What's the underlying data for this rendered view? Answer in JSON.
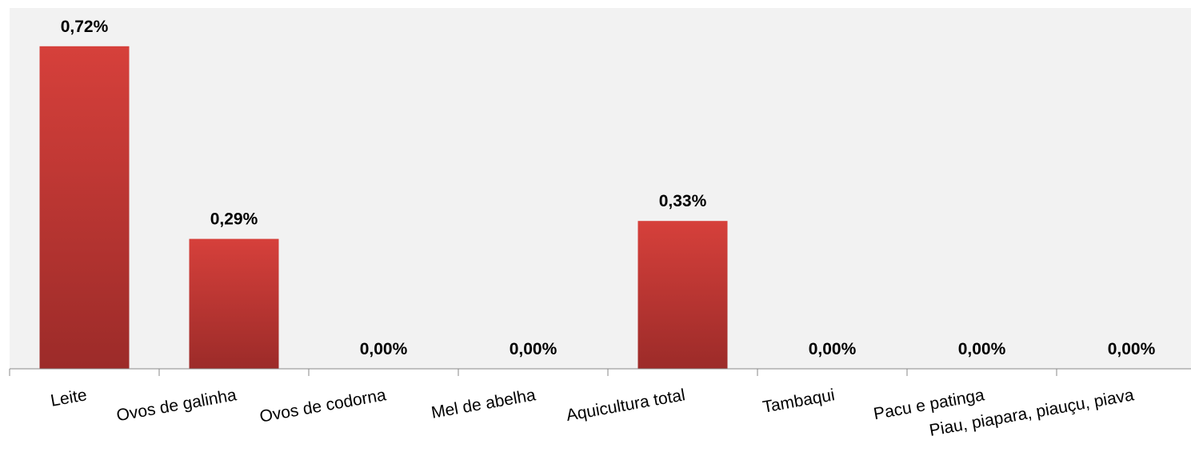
{
  "chart_data": {
    "type": "bar",
    "categories": [
      "Leite",
      "Ovos de galinha",
      "Ovos de codorna",
      "Mel de abelha",
      "Aquicultura total",
      "Tambaqui",
      "Pacu e patinga",
      "Piau, piapara, piauçu, piava"
    ],
    "values": [
      0.72,
      0.29,
      0,
      0,
      0.33,
      0,
      0,
      0
    ],
    "value_labels": [
      "0,72%",
      "0,29%",
      "0,00%",
      "0,00%",
      "0,33%",
      "0,00%",
      "0,00%",
      "0,00%"
    ],
    "color": "#c0392b",
    "grid": false
  }
}
